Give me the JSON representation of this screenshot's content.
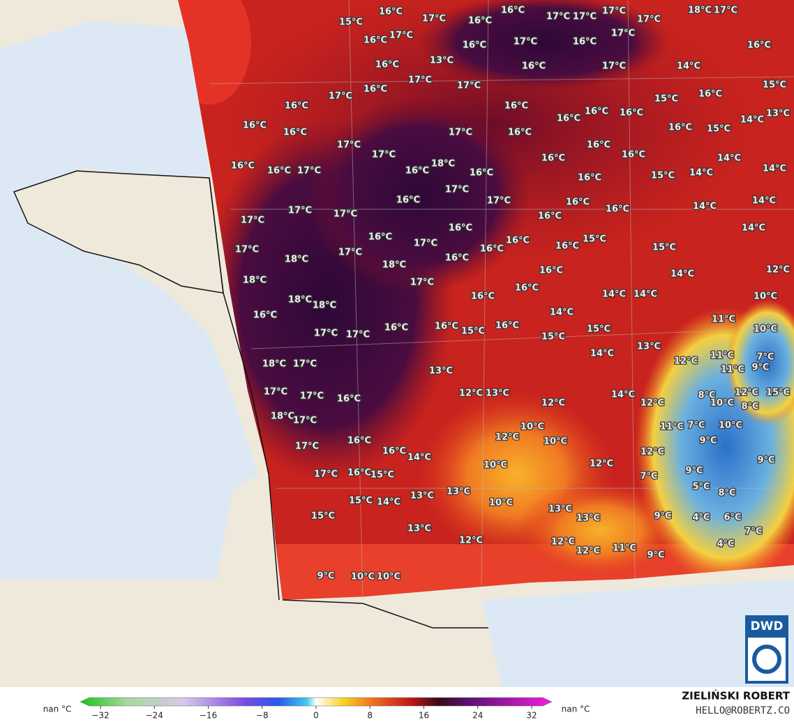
{
  "map": {
    "labels": [
      "16°C",
      "16°C",
      "17°C",
      "16°C",
      "17°C",
      "17°C",
      "17°C",
      "17°C",
      "18°C",
      "17°C",
      "15°C",
      "17°C",
      "16°C",
      "17°C",
      "16°C",
      "16°C",
      "17°C",
      "16°C",
      "16°C",
      "13°C",
      "16°C",
      "17°C",
      "14°C",
      "17°C",
      "17°C",
      "16°C",
      "17°C",
      "15°C",
      "15°C",
      "16°C",
      "16°C",
      "16°C",
      "16°C",
      "16°C",
      "13°C",
      "14°C",
      "16°C",
      "16°C",
      "17°C",
      "16°C",
      "16°C",
      "16°C",
      "15°C",
      "17°C",
      "17°C",
      "16°C",
      "16°C",
      "16°C",
      "14°C",
      "16°C",
      "16°C",
      "17°C",
      "18°C",
      "16°C",
      "16°C",
      "15°C",
      "14°C",
      "14°C",
      "16°C",
      "17°C",
      "16°C",
      "17°C",
      "16°C",
      "14°C",
      "14°C",
      "17°C",
      "17°C",
      "16°C",
      "17°C",
      "16°C",
      "14°C",
      "16°C",
      "16°C",
      "17°C",
      "16°C",
      "15°C",
      "15°C",
      "16°C",
      "16°C",
      "17°C",
      "17°C",
      "16°C",
      "18°C",
      "18°C",
      "16°C",
      "14°C",
      "12°C",
      "18°C",
      "17°C",
      "16°C",
      "14°C",
      "14°C",
      "10°C",
      "18°C",
      "18°C",
      "16°C",
      "14°C",
      "16°C",
      "11°C",
      "10°C",
      "16°C",
      "15°C",
      "16°C",
      "16°C",
      "17°C",
      "17°C",
      "15°C",
      "15°C",
      "13°C",
      "14°C",
      "11°C",
      "7°C",
      "18°C",
      "17°C",
      "12°C",
      "11°C",
      "9°C",
      "13°C",
      "12°C",
      "15°C",
      "17°C",
      "17°C",
      "12°C",
      "13°C",
      "14°C",
      "16°C",
      "8°C",
      "10°C",
      "12°C",
      "12°C",
      "8°C",
      "18°C",
      "17°C",
      "10°C",
      "11°C",
      "7°C",
      "10°C",
      "12°C",
      "10°C",
      "16°C",
      "9°C",
      "17°C",
      "16°C",
      "14°C",
      "12°C",
      "9°C",
      "12°C",
      "10°C",
      "9°C",
      "17°C",
      "16°C",
      "15°C",
      "7°C",
      "5°C",
      "8°C",
      "13°C",
      "13°C",
      "15°C",
      "14°C",
      "10°C",
      "13°C",
      "13°C",
      "15°C",
      "9°C",
      "4°C",
      "6°C",
      "13°C",
      "7°C",
      "12°C",
      "12°C",
      "12°C",
      "11°C",
      "9°C",
      "4°C",
      "9°C",
      "10°C",
      "10°C"
    ]
  },
  "colorbar": {
    "left_label": "nan °C",
    "right_label": "nan °C",
    "lim": [
      -35,
      35
    ],
    "ticks": [
      {
        "value": -32,
        "label": "−32"
      },
      {
        "value": -24,
        "label": "−24"
      },
      {
        "value": -16,
        "label": "−16"
      },
      {
        "value": -8,
        "label": "−8"
      },
      0,
      8,
      16,
      24,
      32
    ]
  },
  "credit": {
    "author": "ZIELIŃSKI ROBERT",
    "email": "HELLO@ROBERTZ.CO",
    "logo": "DWD"
  }
}
